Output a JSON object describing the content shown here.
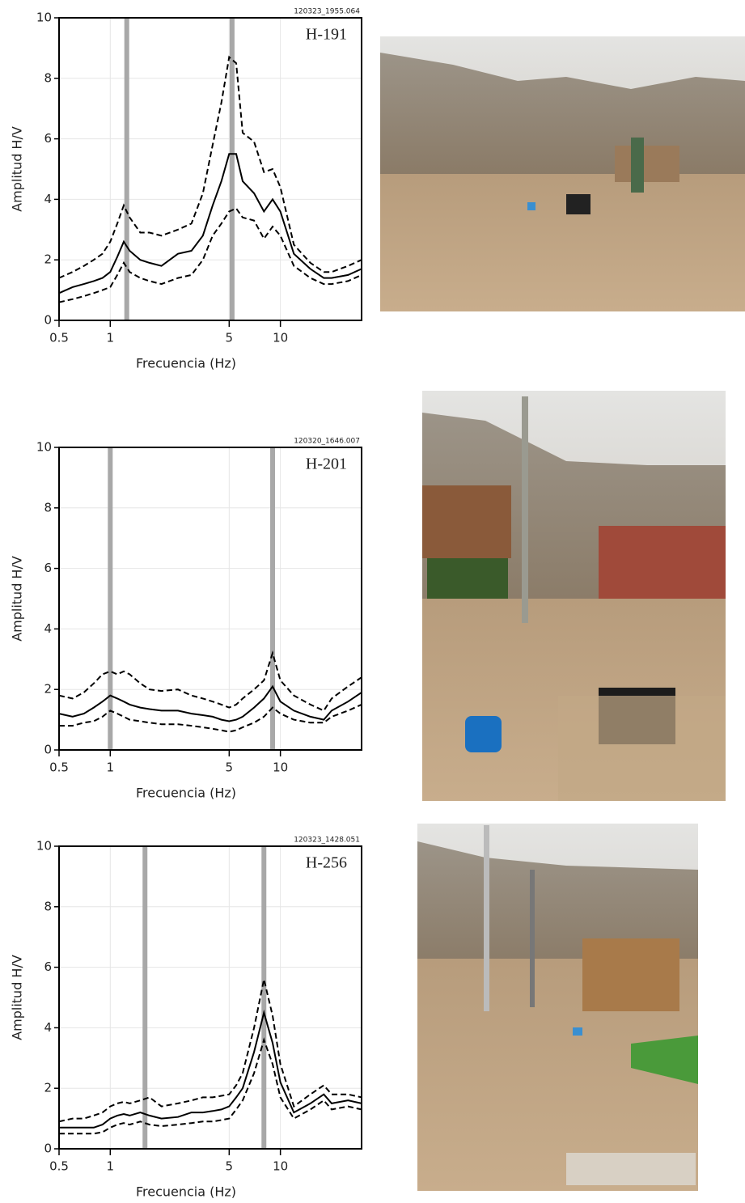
{
  "chart_data": [
    {
      "type": "line",
      "site_label": "H-191",
      "record_id": "120323_1955.064",
      "xlabel": "Frecuencia (Hz)",
      "ylabel": "Amplitud H/V",
      "xscale": "log",
      "xlim": [
        0.5,
        30
      ],
      "xticks": [
        0.5,
        1,
        5,
        10
      ],
      "ylim": [
        0,
        10
      ],
      "yticks": [
        0,
        2,
        4,
        6,
        8,
        10
      ],
      "grid": true,
      "peak_bands": [
        1.25,
        5.2
      ],
      "band_color": "#a8a8a8",
      "x": [
        0.5,
        0.6,
        0.7,
        0.8,
        0.9,
        1,
        1.1,
        1.2,
        1.3,
        1.5,
        1.7,
        2,
        2.5,
        3,
        3.5,
        4,
        4.5,
        5,
        5.5,
        6,
        7,
        8,
        9,
        10,
        12,
        15,
        18,
        20,
        25,
        30
      ],
      "series": [
        {
          "color": "#000000",
          "style": "solid",
          "values": [
            0.9,
            1.1,
            1.2,
            1.3,
            1.4,
            1.6,
            2.1,
            2.6,
            2.3,
            2.0,
            1.9,
            1.8,
            2.2,
            2.3,
            2.8,
            3.8,
            4.6,
            5.5,
            5.5,
            4.6,
            4.2,
            3.6,
            4.0,
            3.6,
            2.2,
            1.7,
            1.4,
            1.4,
            1.5,
            1.7
          ]
        },
        {
          "color": "#000000",
          "style": "dashed",
          "values": [
            1.4,
            1.6,
            1.8,
            2.0,
            2.2,
            2.6,
            3.2,
            3.8,
            3.4,
            2.9,
            2.9,
            2.8,
            3.0,
            3.2,
            4.2,
            5.8,
            7.2,
            8.7,
            8.5,
            6.2,
            5.9,
            4.9,
            5.0,
            4.4,
            2.5,
            1.9,
            1.6,
            1.6,
            1.8,
            2.0
          ]
        },
        {
          "color": "#000000",
          "style": "dashed",
          "values": [
            0.6,
            0.7,
            0.8,
            0.9,
            1.0,
            1.1,
            1.5,
            1.9,
            1.6,
            1.4,
            1.3,
            1.2,
            1.4,
            1.5,
            2.0,
            2.8,
            3.2,
            3.6,
            3.7,
            3.4,
            3.3,
            2.7,
            3.1,
            2.8,
            1.8,
            1.4,
            1.2,
            1.2,
            1.3,
            1.5
          ]
        }
      ]
    },
    {
      "type": "line",
      "site_label": "H-201",
      "record_id": "120320_1646.007",
      "xlabel": "Frecuencia (Hz)",
      "ylabel": "Amplitud H/V",
      "xscale": "log",
      "xlim": [
        0.5,
        30
      ],
      "xticks": [
        0.5,
        1,
        5,
        10
      ],
      "ylim": [
        0,
        10
      ],
      "yticks": [
        0,
        2,
        4,
        6,
        8,
        10
      ],
      "grid": true,
      "peak_bands": [
        1.0,
        9.0
      ],
      "band_color": "#a8a8a8",
      "x": [
        0.5,
        0.6,
        0.7,
        0.8,
        0.9,
        1,
        1.1,
        1.2,
        1.3,
        1.5,
        1.7,
        2,
        2.5,
        3,
        3.5,
        4,
        4.5,
        5,
        5.5,
        6,
        7,
        8,
        9,
        10,
        12,
        15,
        18,
        20,
        25,
        30
      ],
      "series": [
        {
          "color": "#000000",
          "style": "solid",
          "values": [
            1.2,
            1.1,
            1.2,
            1.4,
            1.6,
            1.8,
            1.7,
            1.6,
            1.5,
            1.4,
            1.35,
            1.3,
            1.3,
            1.2,
            1.15,
            1.1,
            1.0,
            0.95,
            1.0,
            1.1,
            1.4,
            1.7,
            2.1,
            1.6,
            1.3,
            1.1,
            1.0,
            1.3,
            1.6,
            1.9
          ]
        },
        {
          "color": "#000000",
          "style": "dashed",
          "values": [
            1.8,
            1.7,
            1.9,
            2.2,
            2.5,
            2.6,
            2.5,
            2.6,
            2.5,
            2.2,
            2.0,
            1.95,
            2.0,
            1.8,
            1.7,
            1.6,
            1.5,
            1.4,
            1.5,
            1.7,
            2.0,
            2.3,
            3.2,
            2.3,
            1.8,
            1.5,
            1.3,
            1.7,
            2.1,
            2.4
          ]
        },
        {
          "color": "#000000",
          "style": "dashed",
          "values": [
            0.8,
            0.8,
            0.9,
            0.95,
            1.1,
            1.3,
            1.2,
            1.1,
            1.0,
            0.95,
            0.9,
            0.85,
            0.85,
            0.8,
            0.75,
            0.7,
            0.65,
            0.6,
            0.65,
            0.75,
            0.9,
            1.1,
            1.4,
            1.2,
            1.0,
            0.9,
            0.9,
            1.1,
            1.3,
            1.5
          ]
        }
      ]
    },
    {
      "type": "line",
      "site_label": "H-256",
      "record_id": "120323_1428.051",
      "xlabel": "Frecuencia (Hz)",
      "ylabel": "Amplitud H/V",
      "xscale": "log",
      "xlim": [
        0.5,
        30
      ],
      "xticks": [
        0.5,
        1,
        5,
        10
      ],
      "ylim": [
        0,
        10
      ],
      "yticks": [
        0,
        2,
        4,
        6,
        8,
        10
      ],
      "grid": true,
      "peak_bands": [
        1.6,
        8.0
      ],
      "band_color": "#a8a8a8",
      "x": [
        0.5,
        0.6,
        0.7,
        0.8,
        0.9,
        1,
        1.1,
        1.2,
        1.3,
        1.5,
        1.7,
        2,
        2.5,
        3,
        3.5,
        4,
        4.5,
        5,
        5.5,
        6,
        7,
        8,
        9,
        10,
        12,
        15,
        18,
        20,
        25,
        30
      ],
      "series": [
        {
          "color": "#000000",
          "style": "solid",
          "values": [
            0.7,
            0.7,
            0.7,
            0.7,
            0.8,
            1.0,
            1.1,
            1.15,
            1.1,
            1.2,
            1.1,
            1.0,
            1.05,
            1.2,
            1.2,
            1.25,
            1.3,
            1.4,
            1.7,
            2.0,
            3.2,
            4.5,
            3.5,
            2.2,
            1.2,
            1.5,
            1.8,
            1.5,
            1.6,
            1.5
          ]
        },
        {
          "color": "#000000",
          "style": "dashed",
          "values": [
            0.9,
            1.0,
            1.0,
            1.1,
            1.2,
            1.4,
            1.5,
            1.55,
            1.5,
            1.6,
            1.7,
            1.4,
            1.5,
            1.6,
            1.7,
            1.7,
            1.75,
            1.8,
            2.1,
            2.5,
            4.0,
            5.6,
            4.4,
            2.8,
            1.4,
            1.8,
            2.1,
            1.8,
            1.8,
            1.7
          ]
        },
        {
          "color": "#000000",
          "style": "dashed",
          "values": [
            0.5,
            0.5,
            0.5,
            0.5,
            0.55,
            0.7,
            0.8,
            0.85,
            0.8,
            0.9,
            0.8,
            0.75,
            0.8,
            0.85,
            0.9,
            0.9,
            0.95,
            1.0,
            1.3,
            1.6,
            2.5,
            3.6,
            2.8,
            1.7,
            1.0,
            1.3,
            1.6,
            1.3,
            1.4,
            1.3
          ]
        }
      ]
    }
  ]
}
